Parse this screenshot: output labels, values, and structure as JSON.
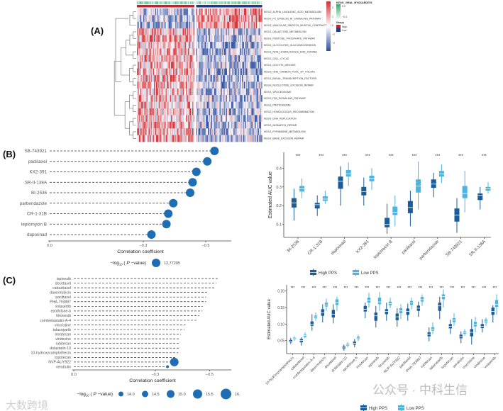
{
  "panel_labels": {
    "a": "(A)",
    "b": "(B)",
    "c": "(C)"
  },
  "colors": {
    "high": "#1b5c9b",
    "low": "#4db4e0",
    "bubble": "#1f6db3",
    "heat_high": "#d62b2f",
    "heat_low": "#2b4ea0",
    "group_high": "#c7202b",
    "group_low": "#1f3a8a",
    "annotation": "#3aa56a"
  },
  "watermarks": {
    "wechat": "公众号 · 中科生信",
    "left": "大数跨境"
  },
  "chart_data": [
    {
      "type": "heatmap",
      "rows": [
        "KEGG_ALPHA_LINOLENIC_ACID_METABOLISM",
        "KEGG_FC_EPSILON_RI_SIGNALING_PATHWAY",
        "KEGG_VASCULAR_SMOOTH_MUSCLE_CONTRACTION",
        "KEGG_GALACTOSE_METABOLISM",
        "KEGG_PENTOSE_PHOSPHATE_PATHWAY",
        "KEGG_GLYCOLYSIS_GLUCONEOGENESIS",
        "KEGG_NON_HOMOLOGOUS_END_JOINING",
        "KEGG_CELL_CYCLE",
        "KEGG_OOCYTE_MEIOSIS",
        "KEGG_ONE_CARBON_POOL_BY_FOLATE",
        "KEGG_BASAL_TRANSCRIPTION_FACTORS",
        "KEGG_NUCLEOTIDE_EXCISION_REPAIR",
        "KEGG_SPLICEOSOME",
        "KEGG_P53_SIGNALING_PATHWAY",
        "KEGG_PROTEASOME",
        "KEGG_HOMOLOGOUS_RECOMBINATION",
        "KEGG_DNA_REPLICATION",
        "KEGG_MISMATCH_REPAIR",
        "KEGG_PYRIMIDINE_METABOLISM",
        "KEGG_BASE_EXCISION_REPAIR"
      ],
      "groups": [
        "High",
        "Low"
      ],
      "colorbar_ticks": [
        "2",
        "1",
        "0",
        "−1",
        "−2"
      ],
      "range": [
        -2.5,
        2.5
      ],
      "annotation_title": "KEGG_VIRAL_MYOCARDITIS",
      "annotation_ticks": [
        "0.0",
        "−0.4"
      ],
      "group_title": "Group",
      "group_labels": [
        "High",
        "Low"
      ]
    },
    {
      "type": "scatter",
      "subtype": "lollipop",
      "drugs": [
        "SB-743921",
        "paclitaxel",
        "KX2-391",
        "SR-II-138A",
        "BI-2536",
        "parbendazole",
        "CR-1-31B",
        "leptomycin B",
        "daporinad"
      ],
      "correlation": [
        -0.528,
        -0.505,
        -0.47,
        -0.458,
        -0.45,
        -0.396,
        -0.38,
        -0.374,
        -0.326
      ],
      "neglog10_p": [
        12.77205,
        12.77205,
        12.77205,
        12.77205,
        12.77205,
        12.77205,
        12.77205,
        12.77205,
        12.77205
      ],
      "xlim": [
        0.0,
        -0.58
      ],
      "xticks": [
        0.0,
        -0.3,
        -0.5
      ],
      "xtick_labels": [
        "0.0",
        "−0.3",
        "−0.5"
      ],
      "xlabel": "Correlation coefficient",
      "size_title": {
        "a": "−log",
        "sub": "10",
        "b": " ( ",
        "p": "P",
        "c": " −value)"
      },
      "size_legend": [
        {
          "value": 12.77205,
          "label": "12.77205"
        }
      ],
      "legend_position": "bottom"
    },
    {
      "type": "box",
      "categories": [
        "BI-2536",
        "CR-1-31B",
        "daporinad",
        "KX2-391",
        "leptomycin B",
        "paclitaxel",
        "parbendazole",
        "SB-743921",
        "SR-II-138A"
      ],
      "ylabel": "Estimated AUC value",
      "ylim": [
        0.04,
        0.47
      ],
      "yticks": [
        0.1,
        0.2,
        0.3,
        0.4
      ],
      "ytick_labels": [
        "0.1",
        "0.2",
        "0.3",
        "0.4"
      ],
      "significance": [
        "***",
        "***",
        "***",
        "***",
        "***",
        "***",
        "***",
        "***",
        "***"
      ],
      "series": [
        {
          "name": "High PPS",
          "stats_min_q1_med_q3_max": [
            [
              0.12,
              0.19,
              0.215,
              0.24,
              0.29
            ],
            [
              0.145,
              0.185,
              0.205,
              0.215,
              0.255
            ],
            [
              0.2,
              0.29,
              0.33,
              0.355,
              0.41
            ],
            [
              0.2,
              0.255,
              0.275,
              0.3,
              0.35
            ],
            [
              0.05,
              0.085,
              0.1,
              0.135,
              0.21
            ],
            [
              0.09,
              0.16,
              0.19,
              0.225,
              0.28
            ],
            [
              0.245,
              0.295,
              0.315,
              0.34,
              0.375
            ],
            [
              0.055,
              0.115,
              0.15,
              0.185,
              0.24
            ],
            [
              0.18,
              0.23,
              0.255,
              0.265,
              0.3
            ]
          ]
        },
        {
          "name": "Low PPS",
          "stats_min_q1_med_q3_max": [
            [
              0.24,
              0.275,
              0.29,
              0.305,
              0.345
            ],
            [
              0.21,
              0.225,
              0.235,
              0.25,
              0.28
            ],
            [
              0.305,
              0.355,
              0.37,
              0.39,
              0.43
            ],
            [
              0.285,
              0.33,
              0.345,
              0.36,
              0.4
            ],
            [
              0.09,
              0.15,
              0.165,
              0.195,
              0.255
            ],
            [
              0.18,
              0.27,
              0.305,
              0.34,
              0.435
            ],
            [
              0.32,
              0.355,
              0.37,
              0.385,
              0.42
            ],
            [
              0.165,
              0.24,
              0.265,
              0.305,
              0.385
            ],
            [
              0.265,
              0.28,
              0.29,
              0.3,
              0.325
            ]
          ]
        }
      ],
      "legend": [
        "High PPS",
        "Low PPS"
      ],
      "legend_position": "bottom"
    },
    {
      "type": "scatter",
      "subtype": "lollipop",
      "drugs": [
        "ispinesib",
        "docetaxel",
        "cabazitaxel",
        "daunorubicin",
        "paclitaxel",
        "PHA-793887",
        "volasertib",
        "epothilone-b",
        "litronesib",
        "combretastatin-A-4",
        "vincristine",
        "talazoparib",
        "irinotecan",
        "vindesine",
        "rubitecan",
        "dolastatin-10",
        "10-hydroxycamptothecin",
        "topotecan",
        "NVP-AUY922",
        "verubulin"
      ],
      "correlation": [
        -0.532,
        -0.525,
        -0.522,
        -0.49,
        -0.487,
        -0.487,
        -0.475,
        -0.473,
        -0.462,
        -0.456,
        -0.411,
        -0.408,
        -0.394,
        -0.39,
        -0.388,
        -0.388,
        -0.385,
        -0.379,
        -0.37,
        -0.345
      ],
      "neglog10_p": [
        null,
        null,
        null,
        null,
        null,
        null,
        null,
        null,
        null,
        null,
        null,
        null,
        null,
        null,
        null,
        null,
        null,
        null,
        15.25,
        13.3
      ],
      "xlim": [
        0.0,
        -0.59
      ],
      "xticks": [
        0.0,
        -0.3,
        -0.5
      ],
      "xtick_labels": [
        "0.0",
        "−0.3",
        "−0.5"
      ],
      "xlabel": "Correlation coefficient",
      "size_title": {
        "a": "−log",
        "sub": "10",
        "b": " ( ",
        "p": "P",
        "c": " −value)"
      },
      "size_legend": [
        {
          "value": 14.0,
          "label": "14.0"
        },
        {
          "value": 14.5,
          "label": "14.5"
        },
        {
          "value": 15.0,
          "label": "15.0"
        },
        {
          "value": 15.5,
          "label": "15.5"
        },
        {
          "value": 16.0,
          "label": "16."
        }
      ],
      "legend_position": "bottom"
    },
    {
      "type": "box",
      "categories": [
        "10-hydroxycamptothecin",
        "cabazitaxel",
        "combretastatin-A-4",
        "daunorubicin",
        "docetaxel",
        "dolastatin-10",
        "epothilone-b",
        "irinotecan",
        "ispinesib",
        "litronesib",
        "NVP-AUY922",
        "paclitaxel",
        "PHA-793887",
        "rubitecan",
        "talazoparib",
        "topotecan",
        "verubulin",
        "vincristine",
        "vindesine",
        "volasertib"
      ],
      "ylabel": "Estimated AUC value",
      "ylim": [
        0.012,
        0.215
      ],
      "yticks": [
        0.05,
        0.1,
        0.15,
        0.2
      ],
      "ytick_labels": [
        "0.05",
        "0.10",
        "0.15",
        "0.20"
      ],
      "significance": [
        "***",
        "***",
        "***",
        "***",
        "***",
        "***",
        "***",
        "***",
        "***",
        "***",
        "***",
        "***",
        "***",
        "***",
        "***",
        "***",
        "***",
        "***",
        "***",
        "***"
      ],
      "series": [
        {
          "name": "High PPS",
          "stats_min_q1_med_q3_max": [
            [
              0.04,
              0.045,
              0.048,
              0.052,
              0.058
            ],
            [
              0.035,
              0.045,
              0.05,
              0.055,
              0.06
            ],
            [
              0.08,
              0.095,
              0.1,
              0.108,
              0.13
            ],
            [
              0.105,
              0.125,
              0.135,
              0.145,
              0.16
            ],
            [
              0.102,
              0.12,
              0.13,
              0.143,
              0.16
            ],
            [
              0.02,
              0.025,
              0.028,
              0.032,
              0.038
            ],
            [
              0.03,
              0.038,
              0.042,
              0.047,
              0.055
            ],
            [
              0.118,
              0.138,
              0.145,
              0.155,
              0.165
            ],
            [
              0.09,
              0.11,
              0.125,
              0.135,
              0.155
            ],
            [
              0.11,
              0.13,
              0.138,
              0.145,
              0.165
            ],
            [
              0.092,
              0.112,
              0.122,
              0.132,
              0.148
            ],
            [
              0.11,
              0.128,
              0.138,
              0.147,
              0.162
            ],
            [
              0.122,
              0.14,
              0.148,
              0.156,
              0.168
            ],
            [
              0.048,
              0.063,
              0.069,
              0.075,
              0.09
            ],
            [
              0.115,
              0.14,
              0.155,
              0.165,
              0.183
            ],
            [
              0.07,
              0.087,
              0.093,
              0.1,
              0.113
            ],
            [
              0.042,
              0.057,
              0.062,
              0.068,
              0.078
            ],
            [
              0.038,
              0.063,
              0.075,
              0.085,
              0.115
            ],
            [
              0.075,
              0.088,
              0.093,
              0.1,
              0.115
            ],
            [
              0.105,
              0.128,
              0.138,
              0.15,
              0.157
            ]
          ]
        },
        {
          "name": "Low PPS",
          "stats_min_q1_med_q3_max": [
            [
              0.05,
              0.054,
              0.056,
              0.059,
              0.063
            ],
            [
              0.057,
              0.061,
              0.065,
              0.068,
              0.075
            ],
            [
              0.11,
              0.118,
              0.122,
              0.126,
              0.135
            ],
            [
              0.14,
              0.153,
              0.158,
              0.165,
              0.177
            ],
            [
              0.14,
              0.158,
              0.165,
              0.175,
              0.183
            ],
            [
              0.03,
              0.035,
              0.038,
              0.041,
              0.045
            ],
            [
              0.048,
              0.055,
              0.058,
              0.062,
              0.068
            ],
            [
              0.15,
              0.165,
              0.172,
              0.18,
              0.195
            ],
            [
              0.14,
              0.16,
              0.167,
              0.18,
              0.197
            ],
            [
              0.148,
              0.157,
              0.162,
              0.168,
              0.18
            ],
            [
              0.115,
              0.133,
              0.14,
              0.148,
              0.16
            ],
            [
              0.145,
              0.158,
              0.164,
              0.17,
              0.18
            ],
            [
              0.155,
              0.168,
              0.174,
              0.182,
              0.19
            ],
            [
              0.07,
              0.08,
              0.085,
              0.091,
              0.105
            ],
            [
              0.15,
              0.175,
              0.183,
              0.19,
              0.205
            ],
            [
              0.095,
              0.106,
              0.112,
              0.118,
              0.133
            ],
            [
              0.065,
              0.071,
              0.074,
              0.078,
              0.085
            ],
            [
              0.075,
              0.093,
              0.1,
              0.107,
              0.122
            ],
            [
              0.095,
              0.105,
              0.109,
              0.114,
              0.12
            ],
            [
              0.128,
              0.152,
              0.16,
              0.173,
              0.19
            ]
          ]
        }
      ],
      "legend": [
        "High PPS",
        "Low PPS"
      ],
      "legend_position": "bottom"
    }
  ]
}
